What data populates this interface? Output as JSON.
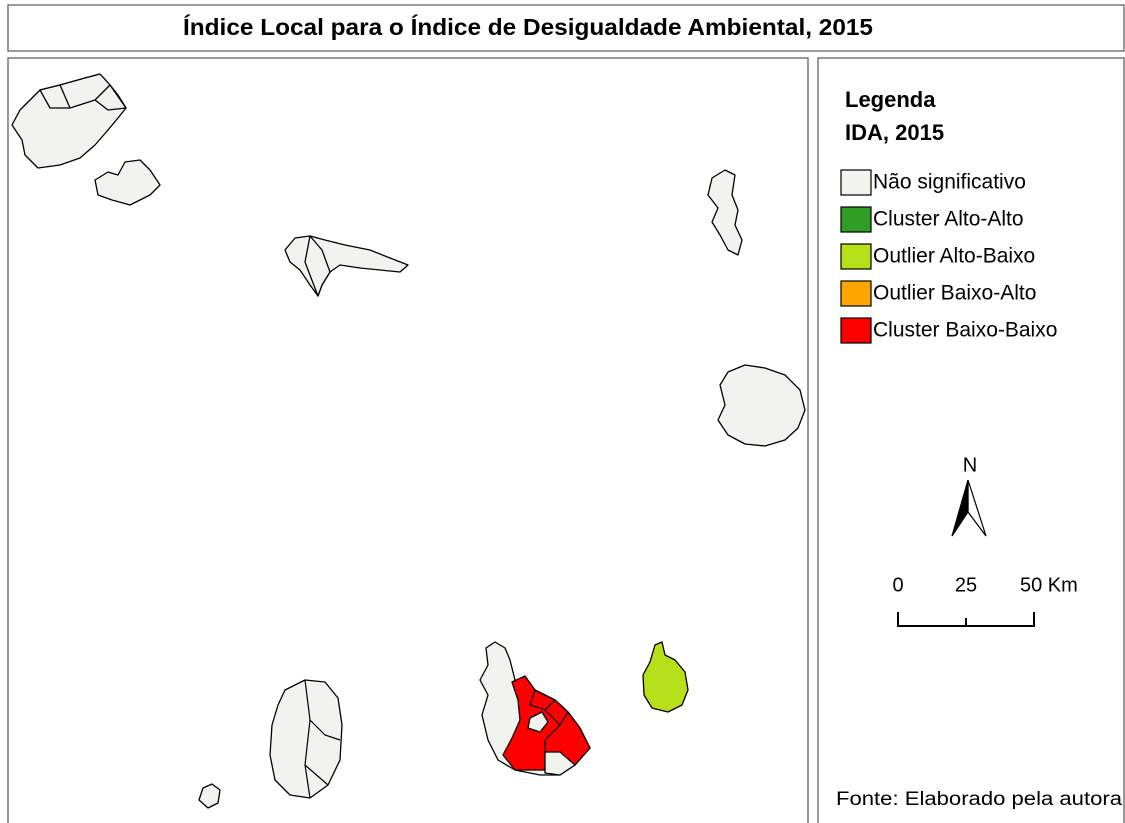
{
  "title": "Índice Local para o Índice de Desigualdade Ambiental, 2015",
  "legend": {
    "title": "Legenda",
    "subtitle": "IDA, 2015",
    "items": [
      {
        "label": "Não significativo",
        "color": "#f2f2ee"
      },
      {
        "label": "Cluster Alto-Alto",
        "color": "#2e9e24"
      },
      {
        "label": "Outlier Alto-Baixo",
        "color": "#b5e01a"
      },
      {
        "label": "Outlier Baixo-Alto",
        "color": "#ffa500"
      },
      {
        "label": "Cluster Baixo-Baixo",
        "color": "#ff0000"
      }
    ]
  },
  "north_arrow": {
    "label": "N"
  },
  "scale_bar": {
    "labels": [
      "0",
      "25",
      "50 Km"
    ]
  },
  "source": "Fonte: Elaborado pela autora"
}
